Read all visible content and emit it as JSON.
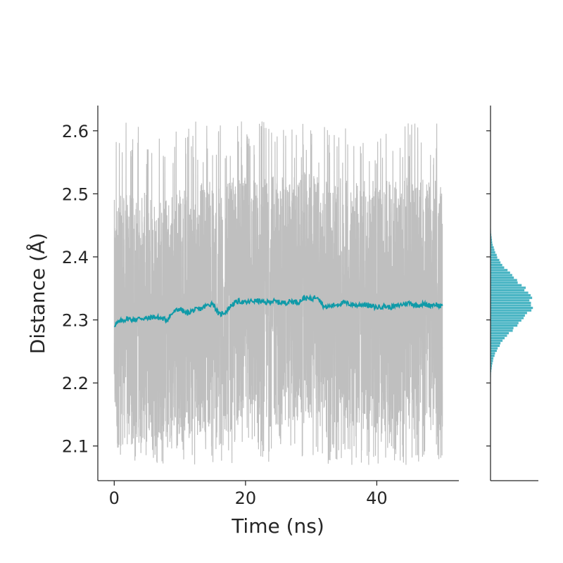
{
  "chart_data": {
    "type": "line",
    "xlabel": "Time (ns)",
    "ylabel": "Distance (Å)",
    "xlim": [
      -2.5,
      52.5
    ],
    "ylim": [
      2.045,
      2.64
    ],
    "xticks": [
      0,
      20,
      40
    ],
    "xtick_labels": [
      "0",
      "20",
      "40"
    ],
    "yticks": [
      2.1,
      2.2,
      2.3,
      2.4,
      2.5,
      2.6
    ],
    "ytick_labels": [
      "2.1",
      "2.2",
      "2.3",
      "2.4",
      "2.5",
      "2.6"
    ],
    "grid": false,
    "legend": "none",
    "raw_distance": {
      "color": "#bfbfbf",
      "x_start": 0,
      "x_end": 50,
      "typical_band": [
        2.12,
        2.52
      ],
      "min": 2.07,
      "max": 2.615
    },
    "running_average": {
      "color": "#0f9aa8",
      "x": [
        0,
        1,
        2,
        3,
        4,
        5,
        6,
        7,
        8,
        9,
        10,
        11,
        12,
        13,
        14,
        15,
        16,
        17,
        18,
        19,
        20,
        21,
        22,
        23,
        24,
        25,
        26,
        27,
        28,
        29,
        30,
        31,
        32,
        33,
        34,
        35,
        36,
        37,
        38,
        39,
        40,
        41,
        42,
        43,
        44,
        45,
        46,
        47,
        48,
        49,
        50
      ],
      "y": [
        2.292,
        2.298,
        2.302,
        2.3,
        2.303,
        2.302,
        2.305,
        2.303,
        2.3,
        2.312,
        2.318,
        2.31,
        2.315,
        2.317,
        2.322,
        2.327,
        2.308,
        2.313,
        2.325,
        2.33,
        2.327,
        2.33,
        2.33,
        2.327,
        2.33,
        2.328,
        2.327,
        2.33,
        2.328,
        2.335,
        2.333,
        2.338,
        2.32,
        2.322,
        2.325,
        2.327,
        2.325,
        2.323,
        2.325,
        2.322,
        2.32,
        2.322,
        2.32,
        2.322,
        2.325,
        2.327,
        2.323,
        2.325,
        2.323,
        2.325,
        2.32
      ]
    },
    "marginal_histogram": {
      "color": "#4ab5c4",
      "orientation": "horizontal",
      "center": 2.325,
      "spread": 0.06
    }
  }
}
